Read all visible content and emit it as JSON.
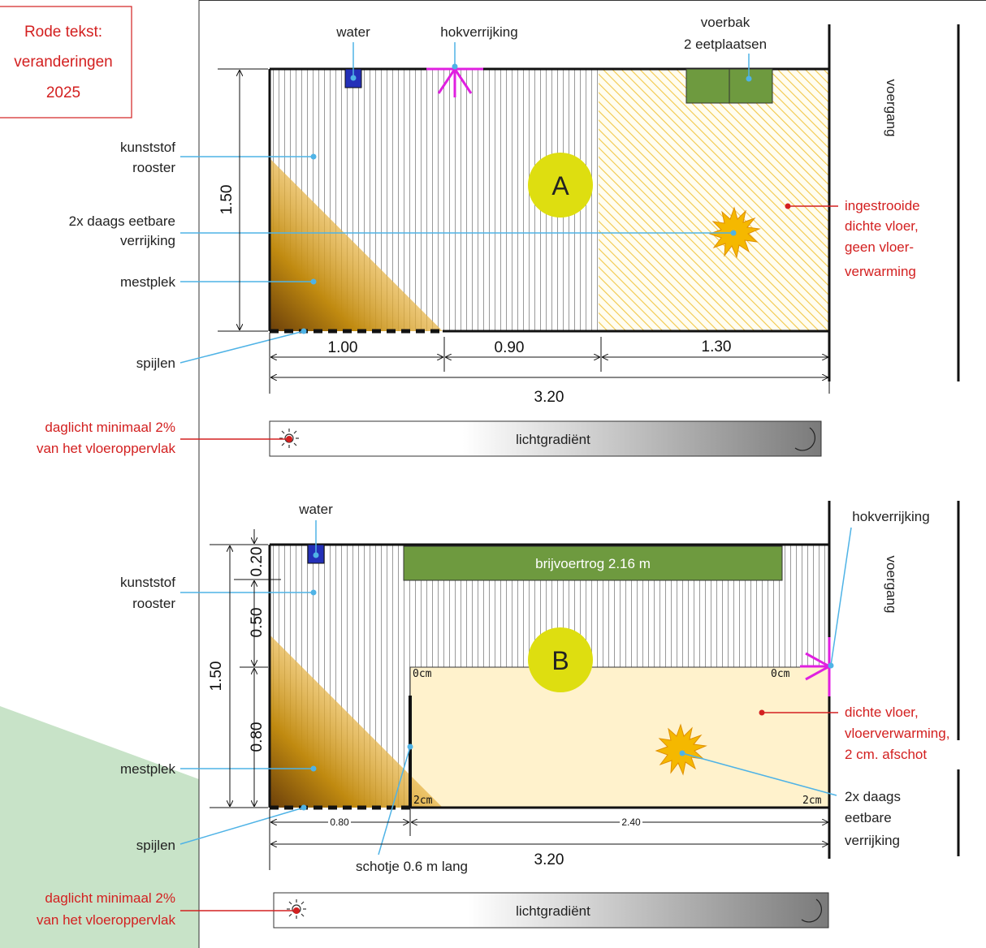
{
  "legend_box": {
    "line1": "Rode tekst:",
    "line2": "veranderingen",
    "line3": "2025"
  },
  "pen_a": {
    "water": "water",
    "hokverrijking": "hokverrijking",
    "voerbak_1": "voerbak",
    "voerbak_2": "2 eetplaatsen",
    "voergang": "voergang",
    "pen_letter": "A",
    "kunststof_1": "kunststof",
    "kunststof_2": "rooster",
    "eetbaar_1": "2x daags eetbare",
    "eetbaar_2": "verrijking",
    "mestplek": "mestplek",
    "spijlen": "spijlen",
    "ingestrooid_1": "ingestrooide",
    "ingestrooid_2": "dichte vloer,",
    "ingestrooid_3": "geen vloer-",
    "ingestrooid_4": "verwarming",
    "dim_depth": "1.50",
    "dim_1": "1.00",
    "dim_2": "0.90",
    "dim_3": "1.30",
    "dim_total": "3.20",
    "daglicht_1": "daglicht minimaal 2%",
    "daglicht_2": "van het vloeroppervlak",
    "light_label": "lichtgradiënt"
  },
  "pen_b": {
    "water": "water",
    "hokverrijking": "hokverrijking",
    "voergang": "voergang",
    "trough": "brijvoertrog 2.16 m",
    "pen_letter": "B",
    "kunststof_1": "kunststof",
    "kunststof_2": "rooster",
    "mestplek": "mestplek",
    "spijlen": "spijlen",
    "dicht_1": "dichte vloer,",
    "dicht_2": "vloerverwarming,",
    "dicht_3": "2 cm. afschot",
    "eetbaar_1": "2x daags",
    "eetbaar_2": "eetbare",
    "eetbaar_3": "verrijking",
    "schotje": "schotje 0.6 m lang",
    "slope_tl": "0cm",
    "slope_tr": "0cm",
    "slope_bl": "2cm",
    "slope_br": "2cm",
    "dim_020": "0.20",
    "dim_050": "0.50",
    "dim_080": "0.80",
    "dim_150": "1.50",
    "dim_b1": "0.80",
    "dim_b2": "2.40",
    "dim_total": "3.20",
    "daglicht_1": "daglicht minimaal 2%",
    "daglicht_2": "van het vloeroppervlak",
    "light_label": "lichtgradiënt"
  },
  "colors": {
    "red": "#d32020",
    "leader": "#4fb3e6",
    "feed": "#6e9a3f",
    "straw": "#f5c842",
    "warm_floor": "#fff2cc",
    "enrichment": "#e020e0",
    "letter_disc": "#dede10",
    "green_bg": "#c8e3c8"
  }
}
